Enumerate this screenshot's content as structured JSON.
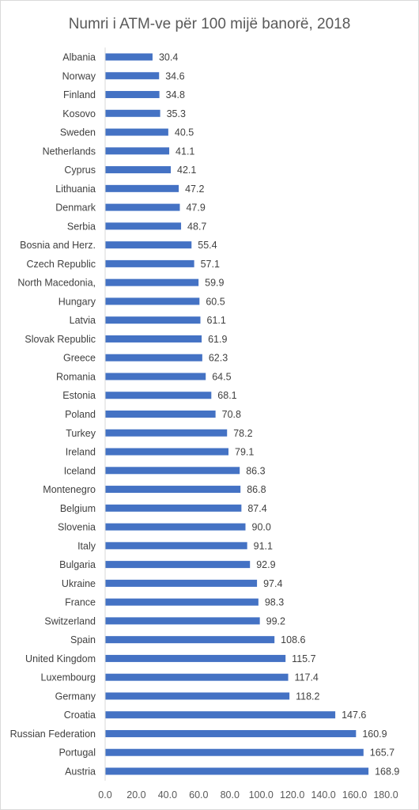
{
  "chart_data": {
    "type": "bar",
    "orientation": "horizontal",
    "title": "Numri i ATM-ve për 100 mijë banorë, 2018",
    "categories": [
      "Albania",
      "Norway",
      "Finland",
      "Kosovo",
      "Sweden",
      "Netherlands",
      "Cyprus",
      "Lithuania",
      "Denmark",
      "Serbia",
      "Bosnia and Herz.",
      "Czech Republic",
      "North Macedonia,",
      "Hungary",
      "Latvia",
      "Slovak Republic",
      "Greece",
      "Romania",
      "Estonia",
      "Poland",
      "Turkey",
      "Ireland",
      "Iceland",
      "Montenegro",
      "Belgium",
      "Slovenia",
      "Italy",
      "Bulgaria",
      "Ukraine",
      "France",
      "Switzerland",
      "Spain",
      "United Kingdom",
      "Luxembourg",
      "Germany",
      "Croatia",
      "Russian Federation",
      "Portugal",
      "Austria"
    ],
    "values": [
      30.4,
      34.6,
      34.8,
      35.3,
      40.5,
      41.1,
      42.1,
      47.2,
      47.9,
      48.7,
      55.4,
      57.1,
      59.9,
      60.5,
      61.1,
      61.9,
      62.3,
      64.5,
      68.1,
      70.8,
      78.2,
      79.1,
      86.3,
      86.8,
      87.4,
      90.0,
      91.1,
      92.9,
      97.4,
      98.3,
      99.2,
      108.6,
      115.7,
      117.4,
      118.2,
      147.6,
      160.9,
      165.7,
      168.9
    ],
    "value_labels": [
      "30.4",
      "34.6",
      "34.8",
      "35.3",
      "40.5",
      "41.1",
      "42.1",
      "47.2",
      "47.9",
      "48.7",
      "55.4",
      "57.1",
      "59.9",
      "60.5",
      "61.1",
      "61.9",
      "62.3",
      "64.5",
      "68.1",
      "70.8",
      "78.2",
      "79.1",
      "86.3",
      "86.8",
      "87.4",
      "90.0",
      "91.1",
      "92.9",
      "97.4",
      "98.3",
      "99.2",
      "108.6",
      "115.7",
      "117.4",
      "118.2",
      "147.6",
      "160.9",
      "165.7",
      "168.9"
    ],
    "xlim": [
      0,
      180
    ],
    "xticks": [
      "0.0",
      "20.0",
      "40.0",
      "60.0",
      "80.0",
      "100.0",
      "120.0",
      "140.0",
      "160.0",
      "180.0"
    ],
    "grid": false,
    "legend": "none",
    "bar_color": "#4472c4"
  }
}
